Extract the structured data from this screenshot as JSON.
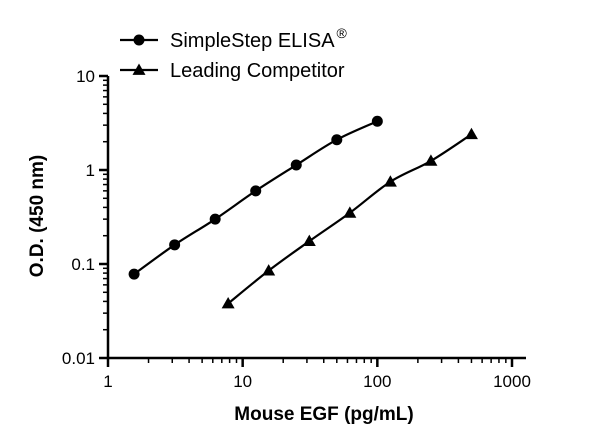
{
  "chart_data": {
    "type": "line",
    "xlabel": "Mouse EGF (pg/mL)",
    "ylabel": "O.D. (450 nm)",
    "xscale": "log",
    "yscale": "log",
    "xlim": [
      1,
      1000
    ],
    "ylim": [
      0.01,
      10
    ],
    "x_ticks": [
      "1",
      "10",
      "100",
      "1000"
    ],
    "y_ticks": [
      "0.01",
      "0.1",
      "1",
      "10"
    ],
    "grid": false,
    "legend_position": "top-left",
    "series": [
      {
        "name": "SimpleStep ELISA",
        "name_superscript": "®",
        "marker": "circle",
        "x": [
          1.5625,
          3.125,
          6.25,
          12.5,
          25,
          50,
          100
        ],
        "y": [
          0.078,
          0.16,
          0.3,
          0.6,
          1.13,
          2.1,
          3.3
        ]
      },
      {
        "name": "Leading Competitor",
        "marker": "triangle",
        "x": [
          7.8,
          15.6,
          31.25,
          62.5,
          125,
          250,
          500
        ],
        "y": [
          0.038,
          0.085,
          0.175,
          0.35,
          0.75,
          1.25,
          2.4
        ]
      }
    ]
  }
}
